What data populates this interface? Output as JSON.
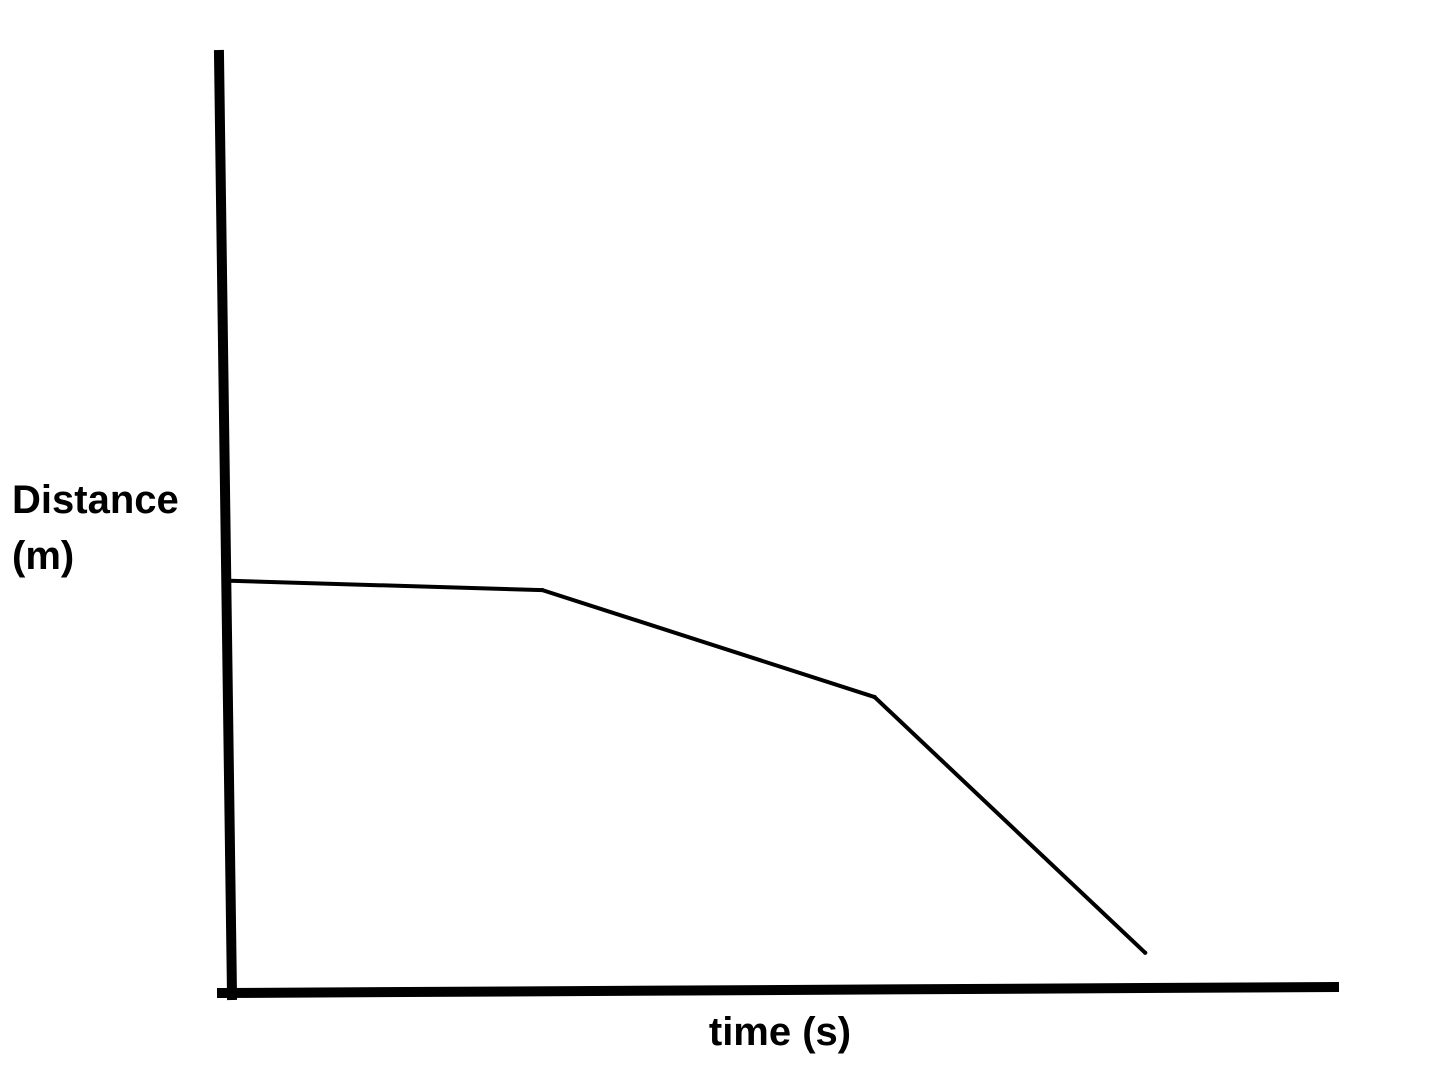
{
  "chart_data": {
    "type": "line",
    "title": "",
    "xlabel": "time (s)",
    "ylabel_lines": [
      "Distance",
      "(m)"
    ],
    "xlim": [
      0,
      100
    ],
    "ylim": [
      0,
      100
    ],
    "grid": false,
    "series": [
      {
        "points": [
          {
            "x": 0,
            "y": 44
          },
          {
            "x": 28.4,
            "y": 43
          },
          {
            "x": 58.6,
            "y": 31.5
          },
          {
            "x": 83.2,
            "y": 4
          }
        ]
      }
    ],
    "line_color": "#000000",
    "axis_color": "#000000"
  }
}
